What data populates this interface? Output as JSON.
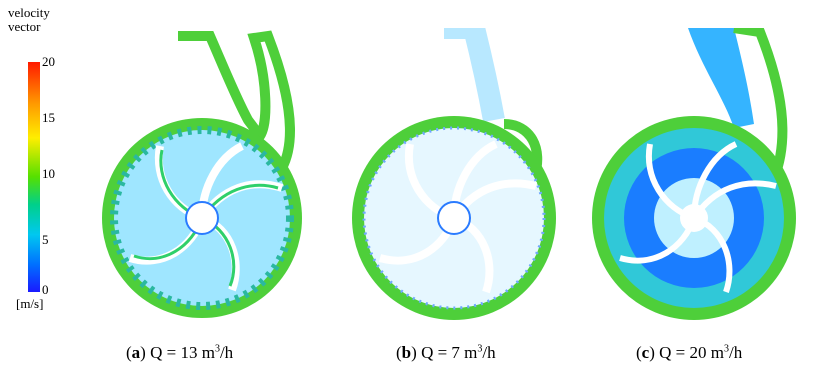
{
  "legend": {
    "title_line1": "velocity",
    "title_line2": "vector",
    "ticks": [
      "20",
      "15",
      "10",
      "5",
      "0"
    ],
    "unit": "[m/s]",
    "colors": [
      "#ff1a00",
      "#ff9900",
      "#ffee00",
      "#55e000",
      "#00d08a",
      "#00c8f0",
      "#0070ff",
      "#1a1aff"
    ]
  },
  "panels": [
    {
      "letter": "a",
      "caption_pre": "Q = 13 m",
      "sup": "3",
      "caption_post": "/h"
    },
    {
      "letter": "b",
      "caption_pre": "Q = 7 m",
      "sup": "3",
      "caption_post": "/h"
    },
    {
      "letter": "c",
      "caption_pre": "Q = 20 m",
      "sup": "3",
      "caption_post": "/h"
    }
  ]
}
